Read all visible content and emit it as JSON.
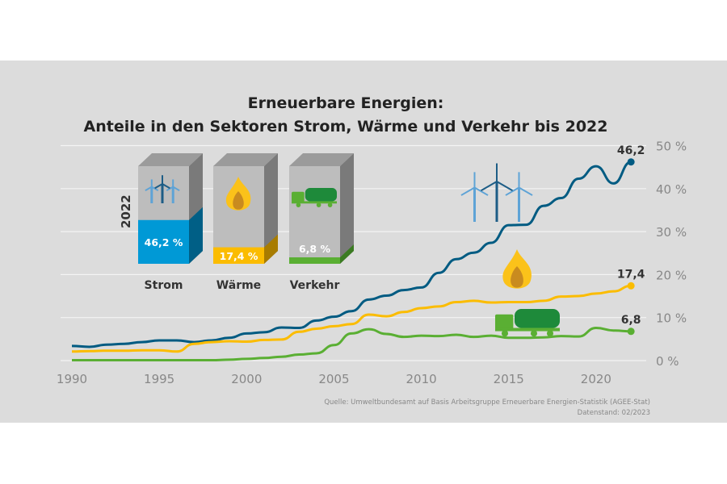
{
  "colors": {
    "background": "#dcdcdc",
    "strom": "#005b82",
    "waerme": "#fbbc00",
    "verkehr": "#5aaf33",
    "grid": "#f4f4f4",
    "axis_text": "#888888"
  },
  "chart_data": {
    "type": "line",
    "title": "Erneuerbare Energien:",
    "subtitle": "Anteile in den Sektoren Strom, Wärme und Verkehr bis 2022",
    "xlim": [
      1990,
      2022
    ],
    "ylim": [
      0,
      50
    ],
    "x_ticks": [
      "1990",
      "1995",
      "2000",
      "2005",
      "2010",
      "2015",
      "2020"
    ],
    "y_ticks": [
      "0 %",
      "10 %",
      "20 %",
      "30 %",
      "40 %",
      "50 %"
    ],
    "grid": true,
    "x": [
      1990,
      1991,
      1992,
      1993,
      1994,
      1995,
      1996,
      1997,
      1998,
      1999,
      2000,
      2001,
      2002,
      2003,
      2004,
      2005,
      2006,
      2007,
      2008,
      2009,
      2010,
      2011,
      2012,
      2013,
      2014,
      2015,
      2016,
      2017,
      2018,
      2019,
      2020,
      2021,
      2022
    ],
    "series": [
      {
        "key": "strom",
        "values": [
          3.4,
          3.2,
          3.7,
          3.9,
          4.3,
          4.7,
          4.7,
          4.3,
          4.7,
          5.3,
          6.3,
          6.6,
          7.7,
          7.6,
          9.3,
          10.2,
          11.5,
          14.2,
          15.1,
          16.4,
          17.0,
          20.4,
          23.6,
          25.1,
          27.4,
          31.5,
          31.6,
          36.0,
          37.8,
          42.3,
          45.2,
          41.2,
          46.2
        ],
        "end_label": "46,2",
        "icon": "wind-turbine-icon"
      },
      {
        "key": "waerme",
        "values": [
          2.1,
          2.2,
          2.3,
          2.3,
          2.4,
          2.4,
          2.1,
          3.9,
          4.3,
          4.5,
          4.4,
          4.8,
          4.9,
          6.7,
          7.4,
          8.0,
          8.5,
          10.7,
          10.3,
          11.3,
          12.2,
          12.6,
          13.6,
          13.9,
          13.5,
          13.6,
          13.6,
          13.9,
          14.9,
          15.0,
          15.6,
          16.1,
          17.4
        ],
        "end_label": "17,4",
        "icon": "flame-icon"
      },
      {
        "key": "verkehr",
        "values": [
          0.1,
          0.1,
          0.1,
          0.1,
          0.1,
          0.1,
          0.1,
          0.1,
          0.1,
          0.2,
          0.4,
          0.6,
          0.9,
          1.4,
          1.7,
          3.6,
          6.3,
          7.3,
          6.2,
          5.5,
          5.8,
          5.7,
          6.0,
          5.5,
          5.8,
          5.3,
          5.3,
          5.4,
          5.7,
          5.6,
          7.6,
          7.0,
          6.8
        ],
        "end_label": "6,8",
        "icon": "truck-icon"
      }
    ],
    "inset": {
      "year_label": "2022",
      "bars": [
        {
          "name": "Strom",
          "value": 46.2,
          "label": "46,2 %"
        },
        {
          "name": "Wärme",
          "value": 17.4,
          "label": "17,4 %"
        },
        {
          "name": "Verkehr",
          "value": 6.8,
          "label": "6,8 %"
        }
      ]
    },
    "source": "Quelle: Umweltbundesamt auf Basis Arbeitsgruppe Erneuerbare Energien-Statistik (AGEE-Stat)",
    "date": "Datenstand: 02/2023"
  }
}
